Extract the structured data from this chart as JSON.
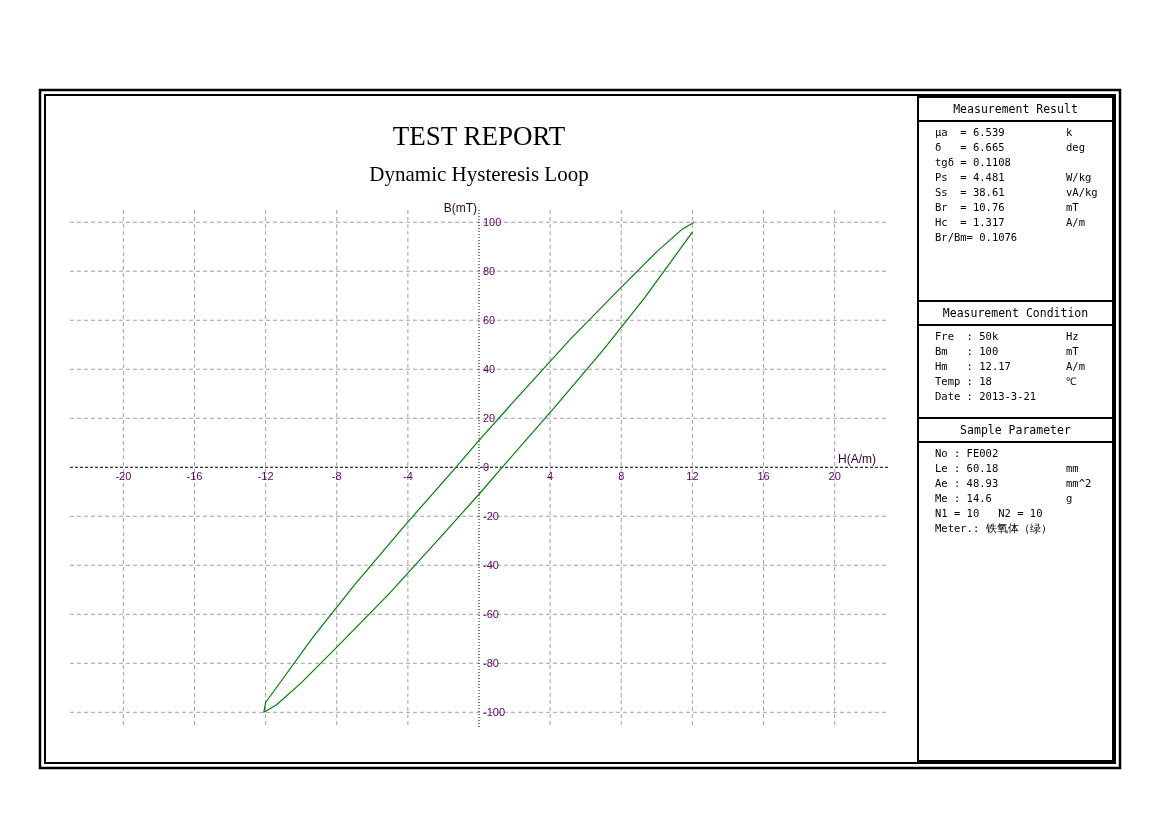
{
  "chart_data": [
    {
      "type": "line",
      "title": "TEST REPORT",
      "subtitle": "Dynamic Hysteresis Loop",
      "xlabel": "H(A/m)",
      "ylabel": "B(mT)",
      "xlim": [
        -23,
        23
      ],
      "ylim": [
        -106,
        105
      ],
      "xticks": [
        -20,
        -16,
        -12,
        -8,
        -4,
        4,
        8,
        12,
        16,
        20
      ],
      "yticks": [
        -100,
        -80,
        -60,
        -40,
        -20,
        0,
        20,
        40,
        60,
        80,
        100
      ],
      "grid": true,
      "line_style": "solid",
      "marker": "none",
      "ref_lines": [
        {
          "axis": "y",
          "value": 0,
          "color": "#000000",
          "line_style": "dashed"
        },
        {
          "axis": "x",
          "value": 0,
          "color": "#000000",
          "line_style": "dotted"
        }
      ],
      "series": [
        {
          "color": "#008000",
          "x": [
            12.1,
            11.4,
            10.0,
            7.8,
            5.1,
            2.1,
            0,
            -1.3,
            -4.2,
            -7.0,
            -9.3,
            -11.0,
            -12.0,
            -12.1,
            -11.4,
            -10.0,
            -7.8,
            -5.1,
            -2.1,
            0,
            1.3,
            4.2,
            7.0,
            9.3,
            11.0,
            12.0
          ],
          "values": [
            100,
            97,
            88,
            72,
            52,
            28,
            11,
            0,
            -24,
            -48,
            -69,
            -86,
            -96,
            -100,
            -97,
            -88,
            -72,
            -52,
            -28,
            -11,
            0,
            24,
            48,
            69,
            86,
            96
          ]
        }
      ]
    },
    {
      "type": "other",
      "title": "Measurement Result",
      "annotations": [
        "μa  = 6.539\tk",
        "δ   = 6.665\tdeg",
        "tgδ = 0.1108",
        "Ps  = 4.481\tW/kg",
        "Ss  = 38.61\tvA/kg",
        "Br  = 10.76\tmT",
        "Hc  = 1.317\tA/m",
        "Br/Bm= 0.1076"
      ]
    },
    {
      "type": "other",
      "title": "Measurement Condition",
      "annotations": [
        "Fre  : 50k\tHz",
        "Bm   : 100\tmT",
        "Hm   : 12.17\tA/m",
        "Temp : 18\t℃",
        "Date : 2013-3-21"
      ]
    },
    {
      "type": "other",
      "title": "Sample Parameter",
      "annotations": [
        "No : FE002",
        "Le : 60.18\tmm",
        "Ae : 48.93\tmm^2",
        "Me : 14.6\tg",
        "N1 = 10   N2 = 10",
        "Meter.: 铁氧体（绿）"
      ]
    }
  ]
}
